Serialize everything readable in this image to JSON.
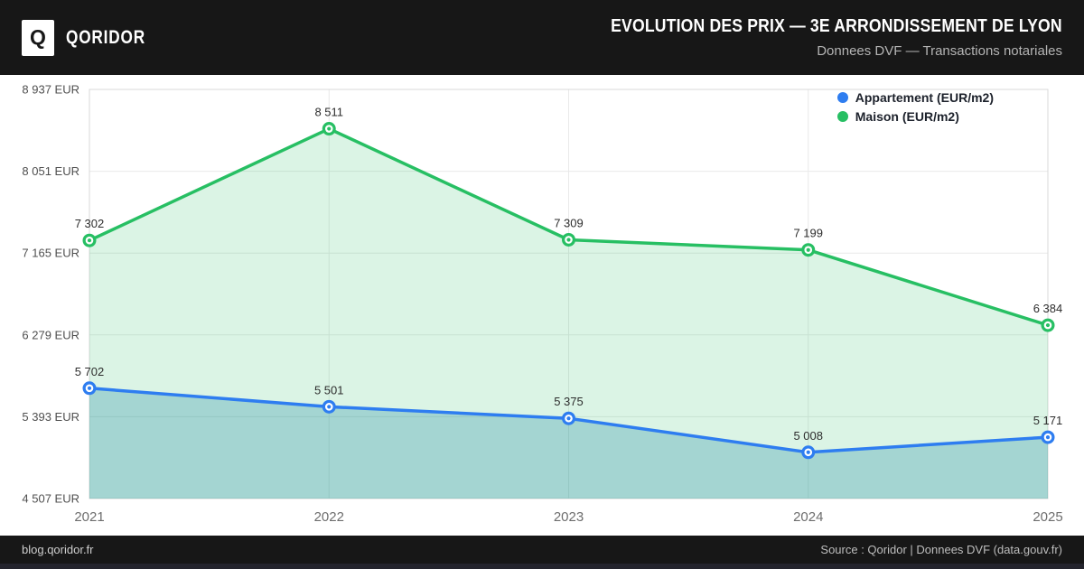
{
  "header": {
    "logo_letter": "Q",
    "brand": "QORIDOR",
    "title": "EVOLUTION DES PRIX — 3E ARRONDISSEMENT DE LYON",
    "subtitle": "Donnees DVF — Transactions notariales"
  },
  "footer": {
    "site": "blog.qoridor.fr",
    "source": "Source : Qoridor | Donnees DVF (data.gouv.fr)"
  },
  "colors": {
    "header_bg": "#171717",
    "appartement": "#2e7df0",
    "maison": "#27bf63",
    "appartement_fill": "rgba(38,142,165,0.30)",
    "maison_fill": "rgba(39,191,99,0.17)",
    "grid": "#e9e9e9",
    "plot_border": "#d9d9d9",
    "ytick_text": "#4f4f4f",
    "xtick_text": "#6d6d6d",
    "datalabel_text": "#2d2d2d"
  },
  "chart_data": {
    "type": "line",
    "x": [
      "2021",
      "2022",
      "2023",
      "2024",
      "2025"
    ],
    "series": [
      {
        "name": "Appartement (EUR/m2)",
        "color": "#2e7df0",
        "values": [
          5702,
          5501,
          5375,
          5008,
          5171
        ]
      },
      {
        "name": "Maison (EUR/m2)",
        "color": "#27bf63",
        "values": [
          7302,
          8511,
          7309,
          7199,
          6384
        ]
      }
    ],
    "ylim": [
      4507,
      8937
    ],
    "yticks": [
      4507,
      5393,
      6279,
      7165,
      8051,
      8937
    ],
    "ytick_suffix": " EUR",
    "grid": true,
    "area_fill": true,
    "data_labels": true,
    "legend_position": "top-right"
  }
}
